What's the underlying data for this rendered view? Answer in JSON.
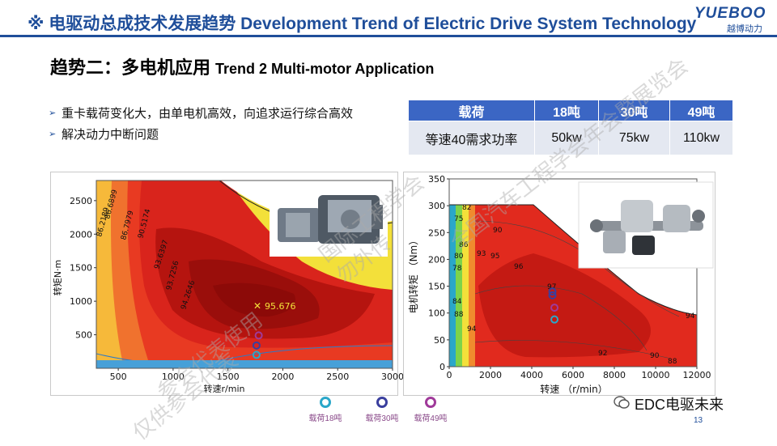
{
  "header": {
    "title": "※ 电驱动总成技术发展趋势 Development Trend of Electric Drive System Technology",
    "logo_text": "YUEBOO",
    "logo_subtext": "越博动力",
    "rule_color": "#1f4e9a"
  },
  "trend": {
    "title_cn": "趋势二：多电机应用",
    "title_en": "Trend 2 Multi-motor Application"
  },
  "bullets": [
    "重卡载荷变化大，由单电机高效，向追求运行综合高效",
    "解决动力中断问题"
  ],
  "power_table": {
    "headers": [
      "载荷",
      "18吨",
      "30吨",
      "49吨"
    ],
    "rows": [
      [
        "等速40需求功率",
        "50kw",
        "75kw",
        "110kw"
      ]
    ],
    "header_color": "#3b66c4",
    "cell_color": "#e4e8f1"
  },
  "chart_data": [
    {
      "type": "heatmap",
      "xlabel": "转速r/min",
      "ylabel": "转矩N·m",
      "x_ticks": [
        500,
        1000,
        1500,
        2000,
        2500,
        3000
      ],
      "y_ticks": [
        500,
        1000,
        1500,
        2000,
        2500
      ],
      "xlim": [
        300,
        3000
      ],
      "ylim": [
        0,
        2800
      ],
      "contour_labels": [
        "86.6899",
        "86.2189",
        "86.7979",
        "90.5174",
        "93.6397",
        "93.7256",
        "94.2646",
        "95.676"
      ],
      "peak_label": "95.676",
      "peak_point": {
        "x": 1750,
        "y": 1030
      },
      "load_points": [
        {
          "load": "18吨",
          "x": 1760,
          "y": 200,
          "color": "#2aa7c9"
        },
        {
          "load": "30吨",
          "x": 1760,
          "y": 340,
          "color": "#3a3f9e"
        },
        {
          "load": "49吨",
          "x": 1780,
          "y": 490,
          "color": "#a03a9a"
        }
      ]
    },
    {
      "type": "heatmap",
      "xlabel": "转速 （r/min）",
      "ylabel": "电机转矩 （Nm）",
      "x_ticks": [
        0,
        2000,
        4000,
        6000,
        8000,
        10000,
        12000
      ],
      "y_ticks": [
        0,
        50,
        100,
        150,
        200,
        250,
        300,
        350
      ],
      "xlim": [
        0,
        12000
      ],
      "ylim": [
        0,
        350
      ],
      "contour_labels": [
        "82",
        "75",
        "90",
        "86",
        "80",
        "93",
        "78",
        "95",
        "96",
        "97",
        "84",
        "88",
        "94",
        "92",
        "90",
        "88",
        "94"
      ],
      "load_points": [
        {
          "load": "18吨",
          "x": 5100,
          "y": 88,
          "color": "#2aa7c9"
        },
        {
          "load": "30吨",
          "x": 5000,
          "y": 133,
          "color": "#3a3f9e"
        },
        {
          "load": "49吨",
          "x": 5100,
          "y": 110,
          "color": "#a03a9a"
        },
        {
          "load": "",
          "x": 5000,
          "y": 140,
          "color": "#3a3f9e"
        }
      ]
    }
  ],
  "legend": [
    {
      "label": "载荷18吨",
      "color": "#2aa7c9"
    },
    {
      "label": "载荷30吨",
      "color": "#3a3f9e"
    },
    {
      "label": "载荷49吨",
      "color": "#a03a9a"
    }
  ],
  "footer": {
    "wechat": "EDC电驱未来",
    "page": "13"
  },
  "watermarks": [
    "仅供参会代表",
    "参会代表使用",
    "勿外传",
    "国际工程学会",
    "全国汽车工程学会年会暨展览会"
  ]
}
